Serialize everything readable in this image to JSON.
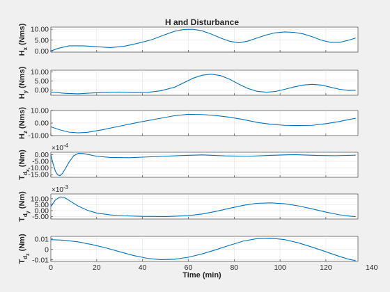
{
  "chart_data": {
    "type": "line",
    "title": "H and Disturbance",
    "xlabel": "Time (min)",
    "xlim": [
      0,
      134
    ],
    "xticks": [
      0,
      20,
      40,
      60,
      80,
      100,
      120,
      140
    ],
    "xtick_labels": [
      "0",
      "20",
      "40",
      "60",
      "80",
      "100",
      "120",
      "140"
    ],
    "grid": true,
    "line_color": "#0072bd",
    "subplots": [
      {
        "ylabel_main": "H",
        "ylabel_sub": "x",
        "ylabel_unit": "(Nms)",
        "multiplier": "",
        "ylim": [
          -0.5,
          11
        ],
        "yticks": [
          0,
          5,
          10
        ],
        "ytick_labels": [
          "0.00",
          "5.00",
          "10.00"
        ],
        "x": [
          0,
          3,
          8,
          14,
          20,
          26,
          32,
          38,
          44,
          50,
          54,
          58,
          62,
          66,
          70,
          74,
          78,
          82,
          86,
          90,
          94,
          98,
          102,
          106,
          110,
          114,
          118,
          122,
          126,
          130,
          133
        ],
        "y": [
          0,
          1.2,
          2.4,
          2.4,
          2.0,
          1.6,
          2.2,
          3.6,
          5.2,
          7.6,
          9.1,
          9.9,
          10.0,
          9.3,
          7.8,
          6.0,
          4.5,
          3.8,
          4.6,
          6.0,
          7.4,
          8.4,
          8.8,
          8.6,
          7.9,
          6.6,
          5.0,
          4.0,
          4.0,
          5.0,
          6.0
        ]
      },
      {
        "ylabel_main": "H",
        "ylabel_sub": "y",
        "ylabel_unit": "(Nms)",
        "multiplier": "",
        "ylim": [
          -3,
          11
        ],
        "yticks": [
          0,
          5,
          10
        ],
        "ytick_labels": [
          "0.00",
          "5.00",
          "10.00"
        ],
        "x": [
          0,
          6,
          12,
          18,
          24,
          30,
          36,
          42,
          48,
          54,
          58,
          62,
          66,
          70,
          74,
          78,
          82,
          86,
          90,
          94,
          98,
          102,
          106,
          110,
          114,
          118,
          122,
          126,
          130,
          133
        ],
        "y": [
          -1.2,
          -1.9,
          -2.2,
          -1.7,
          -1.4,
          -1.2,
          -1.5,
          -1.4,
          -0.5,
          1.5,
          4.0,
          6.5,
          8.2,
          8.8,
          8.0,
          6.0,
          3.2,
          0.8,
          -0.8,
          -1.3,
          -0.9,
          0.3,
          1.6,
          2.7,
          3.1,
          2.7,
          1.5,
          0.3,
          -0.3,
          -0.2
        ]
      },
      {
        "ylabel_main": "H",
        "ylabel_sub": "z",
        "ylabel_unit": "(Nms)",
        "multiplier": "",
        "ylim": [
          -10,
          10
        ],
        "yticks": [
          -10,
          0,
          10
        ],
        "ytick_labels": [
          "-10.00",
          "0.00",
          "10.00"
        ],
        "x": [
          0,
          4,
          8,
          12,
          16,
          22,
          30,
          38,
          46,
          54,
          60,
          66,
          72,
          78,
          84,
          90,
          96,
          102,
          108,
          114,
          120,
          126,
          130,
          133
        ],
        "y": [
          -3.0,
          -5.5,
          -7.3,
          -7.8,
          -7.4,
          -5.5,
          -2.5,
          0.5,
          3.2,
          5.9,
          7.0,
          6.8,
          6.0,
          4.7,
          2.8,
          0.5,
          -1.0,
          -1.8,
          -2.0,
          -1.8,
          -0.5,
          1.3,
          2.8,
          3.8
        ]
      },
      {
        "ylabel_main": "T",
        "ylabel_sub": "d",
        "ylabel_subsub": "x",
        "ylabel_unit": "(Nm)",
        "multiplier": "×10",
        "multiplier_exp": "-4",
        "ylim": [
          -17,
          1.8
        ],
        "yticks": [
          -15,
          -10,
          -5,
          0
        ],
        "ytick_labels": [
          "-15.00",
          "-10.00",
          "-5.00",
          "0.00"
        ],
        "x": [
          0,
          1,
          2,
          3,
          4,
          5,
          6,
          8,
          10,
          12,
          14,
          16,
          20,
          26,
          34,
          44,
          56,
          66,
          76,
          86,
          96,
          106,
          116,
          124,
          133
        ],
        "y": [
          0,
          -7.0,
          -12.5,
          -15.2,
          -15.8,
          -14.2,
          -11.5,
          -5.5,
          -0.8,
          1.0,
          0.9,
          0.2,
          -1.2,
          -2.1,
          -2.3,
          -1.6,
          -0.7,
          -0.2,
          -0.9,
          -1.2,
          -0.5,
          0.0,
          -0.6,
          -0.8,
          -0.4
        ]
      },
      {
        "ylabel_main": "T",
        "ylabel_sub": "d",
        "ylabel_subsub": "y",
        "ylabel_unit": "(Nm)",
        "multiplier": "×10",
        "multiplier_exp": "-3",
        "ylim": [
          -7,
          14
        ],
        "yticks": [
          -5,
          0,
          5,
          10
        ],
        "ytick_labels": [
          "-5.00",
          "0.00",
          "5.00",
          "10.00"
        ],
        "x": [
          0,
          2,
          4,
          6,
          8,
          12,
          16,
          20,
          26,
          32,
          40,
          50,
          60,
          66,
          72,
          78,
          84,
          90,
          96,
          102,
          108,
          114,
          120,
          126,
          130,
          133
        ],
        "y": [
          3.5,
          9.0,
          11.5,
          11.0,
          8.5,
          3.8,
          0.3,
          -2.0,
          -3.6,
          -4.3,
          -4.8,
          -4.9,
          -4.2,
          -2.8,
          -0.6,
          2.0,
          4.5,
          6.2,
          6.5,
          5.8,
          4.0,
          1.5,
          -1.2,
          -3.5,
          -4.5,
          -5.0
        ]
      },
      {
        "ylabel_main": "T",
        "ylabel_sub": "d",
        "ylabel_subsub": "z",
        "ylabel_unit": "(Nm)",
        "multiplier": "",
        "ylim": [
          -0.0115,
          0.0125
        ],
        "yticks": [
          -0.01,
          0,
          0.01
        ],
        "ytick_labels": [
          "-0.01",
          "0",
          "0.01"
        ],
        "x": [
          0,
          6,
          12,
          18,
          24,
          30,
          36,
          42,
          48,
          54,
          60,
          66,
          72,
          78,
          84,
          90,
          96,
          102,
          108,
          114,
          120,
          126,
          130,
          133
        ],
        "y": [
          0.0094,
          0.0088,
          0.0072,
          0.0046,
          0.0015,
          -0.0022,
          -0.0058,
          -0.0085,
          -0.0098,
          -0.0094,
          -0.0075,
          -0.0043,
          -0.0003,
          0.004,
          0.008,
          0.0104,
          0.0108,
          0.0094,
          0.0063,
          0.0022,
          -0.0022,
          -0.0068,
          -0.0094,
          -0.0108
        ]
      }
    ]
  }
}
